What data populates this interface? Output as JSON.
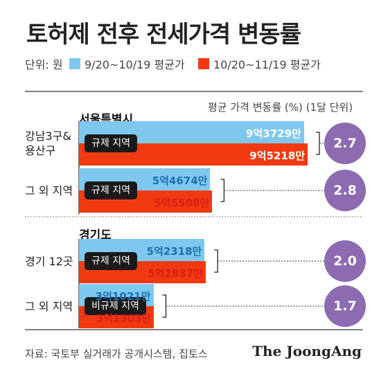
{
  "title": "토허제 전후 전세가격 변동률",
  "legend": {
    "unit": "단위: 원",
    "before_label": "9/20~10/19 평균가",
    "after_label": "10/20~11/19 평균가",
    "before_color": "#7ec8f0",
    "after_color": "#f23a12"
  },
  "change_title": "평균 가격 변동률 (%) (1달 단위)",
  "sections": [
    {
      "title": "서울특별시"
    },
    {
      "title": "경기도"
    }
  ],
  "source": "자료: 국토부 실거래가 공개시스템, 집토스",
  "brand": "The JoongAng",
  "chart_data": {
    "type": "bar",
    "orientation": "horizontal",
    "title": "토허제 전후 전세가격 변동률",
    "unit": "원",
    "categories": [
      {
        "label": "강남3구&\n용산구",
        "section": "서울특별시",
        "badge": "규제 지역",
        "before": 937290000,
        "before_label": "9억3729만",
        "after": 952180000,
        "after_label": "9억5218만",
        "change": 2.7,
        "change_label": "2.7"
      },
      {
        "label": "그 외 지역",
        "section": "서울특별시",
        "badge": "규제 지역",
        "before": 546740000,
        "before_label": "5억4674만",
        "after": 555080000,
        "after_label": "5억5508만",
        "change": 2.8,
        "change_label": "2.8"
      },
      {
        "label": "경기 12곳",
        "section": "경기도",
        "badge": "규제 지역",
        "before": 523180000,
        "before_label": "5억2318만",
        "after": 528370000,
        "after_label": "5억2837만",
        "change": 2.0,
        "change_label": "2.0"
      },
      {
        "label": "그 외 지역",
        "section": "경기도",
        "badge": "비규제 지역",
        "before": 310210000,
        "before_label": "3억1021만",
        "after": 313030000,
        "after_label": "3억1303만",
        "change": 1.7,
        "change_label": "1.7"
      }
    ],
    "series": [
      {
        "name": "9/20~10/19 평균가",
        "key": "before",
        "color": "#7ec8f0"
      },
      {
        "name": "10/20~11/19 평균가",
        "key": "after",
        "color": "#f23a12"
      }
    ],
    "value_label_colors": {
      "before": "#1a6fb0",
      "after": "#d8201a",
      "on_bar": "#ffffff"
    },
    "change_circle_color": "#8c6bb1",
    "xlim": [
      0,
      952180000
    ]
  }
}
